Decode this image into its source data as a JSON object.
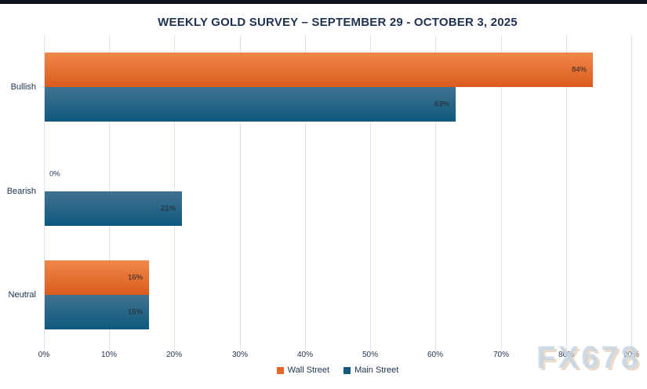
{
  "title": "WEEKLY GOLD SURVEY – SEPTEMBER 29 - OCTOBER 3, 2025",
  "watermark": "FX678",
  "colors": {
    "top_bar": "#0c121d",
    "title_text": "#1d3251",
    "gridline": "#d9e4f1",
    "value_label": "#262626"
  },
  "chart_data": {
    "type": "bar",
    "orientation": "horizontal",
    "title": "WEEKLY GOLD SURVEY – SEPTEMBER 29 - OCTOBER 3, 2025",
    "categories": [
      "Bullish",
      "Bearish",
      "Neutral"
    ],
    "series": [
      {
        "name": "Wall Street",
        "values": [
          84,
          0,
          16
        ],
        "gradient_top": "#f08849",
        "gradient_bottom": "#db5b1e",
        "legend_color": "#e7672a"
      },
      {
        "name": "Main Street",
        "values": [
          63,
          21,
          16
        ],
        "gradient_top": "#41728f",
        "gradient_bottom": "#0e597f",
        "legend_color": "#16587e"
      }
    ],
    "value_suffix": "%",
    "data_labels": [
      [
        "84%",
        "0%",
        "16%"
      ],
      [
        "63%",
        "21%",
        "16%"
      ]
    ],
    "x_ticks": [
      "0%",
      "10%",
      "20%",
      "30%",
      "40%",
      "50%",
      "60%",
      "70%",
      "80%",
      "90%"
    ],
    "xlim": [
      0,
      90
    ],
    "grid": true,
    "legend_position": "bottom"
  }
}
